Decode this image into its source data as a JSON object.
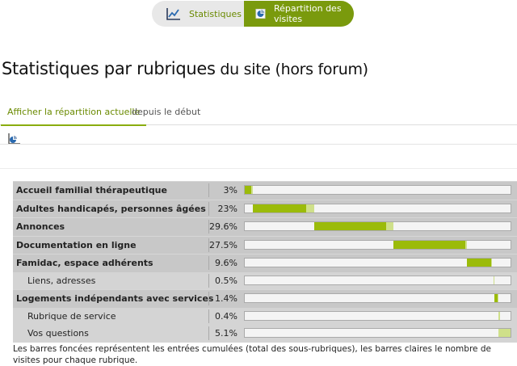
{
  "topnav": {
    "tab_stats": "Statistiques",
    "tab_rep": "Répartition des visites",
    "stats_icon": "line-chart-icon",
    "rep_icon": "pie-chart-icon",
    "accent": "#7a9a0d"
  },
  "page": {
    "title_strong": "Statistiques par rubriques",
    "title_rest": " du site (hors forum)"
  },
  "subtabs": {
    "active": "Afficher la répartition actuelle",
    "inactive": "depuis le début"
  },
  "rows": [
    {
      "name": "Accueil familial thérapeutique",
      "pct": "3%",
      "level": "top",
      "start": 0.0,
      "dark": 0.025,
      "light": 0.03
    },
    {
      "name": "Adultes handicapés, personnes âgées",
      "pct": "23%",
      "level": "top",
      "start": 0.03,
      "dark": 0.2,
      "light": 0.23
    },
    {
      "name": "Annonces",
      "pct": "29.6%",
      "level": "top",
      "start": 0.26,
      "dark": 0.27,
      "light": 0.296
    },
    {
      "name": "Documentation en ligne",
      "pct": "27.5%",
      "level": "top",
      "start": 0.556,
      "dark": 0.27,
      "light": 0.275
    },
    {
      "name": "Famidac, espace adhérents",
      "pct": "9.6%",
      "level": "top",
      "start": 0.83,
      "dark": 0.09,
      "light": 0.096
    },
    {
      "name": "Liens, adresses",
      "pct": "0.5%",
      "level": "sub",
      "start": 0.93,
      "dark": 0.0,
      "light": 0.005
    },
    {
      "name": "Logements indépendants avec services",
      "pct": "1.4%",
      "level": "top",
      "start": 0.935,
      "dark": 0.012,
      "light": 0.014
    },
    {
      "name": "Rubrique de service",
      "pct": "0.4%",
      "level": "sub",
      "start": 0.95,
      "dark": 0.0,
      "light": 0.004
    },
    {
      "name": "Vos questions",
      "pct": "5.1%",
      "level": "sub",
      "start": 0.95,
      "dark": 0.0,
      "light": 0.051
    }
  ],
  "note": "Les barres foncées représentent les entrées cumulées (total des sous-rubriques), les barres claires le nombre de visites pour chaque rubrique."
}
